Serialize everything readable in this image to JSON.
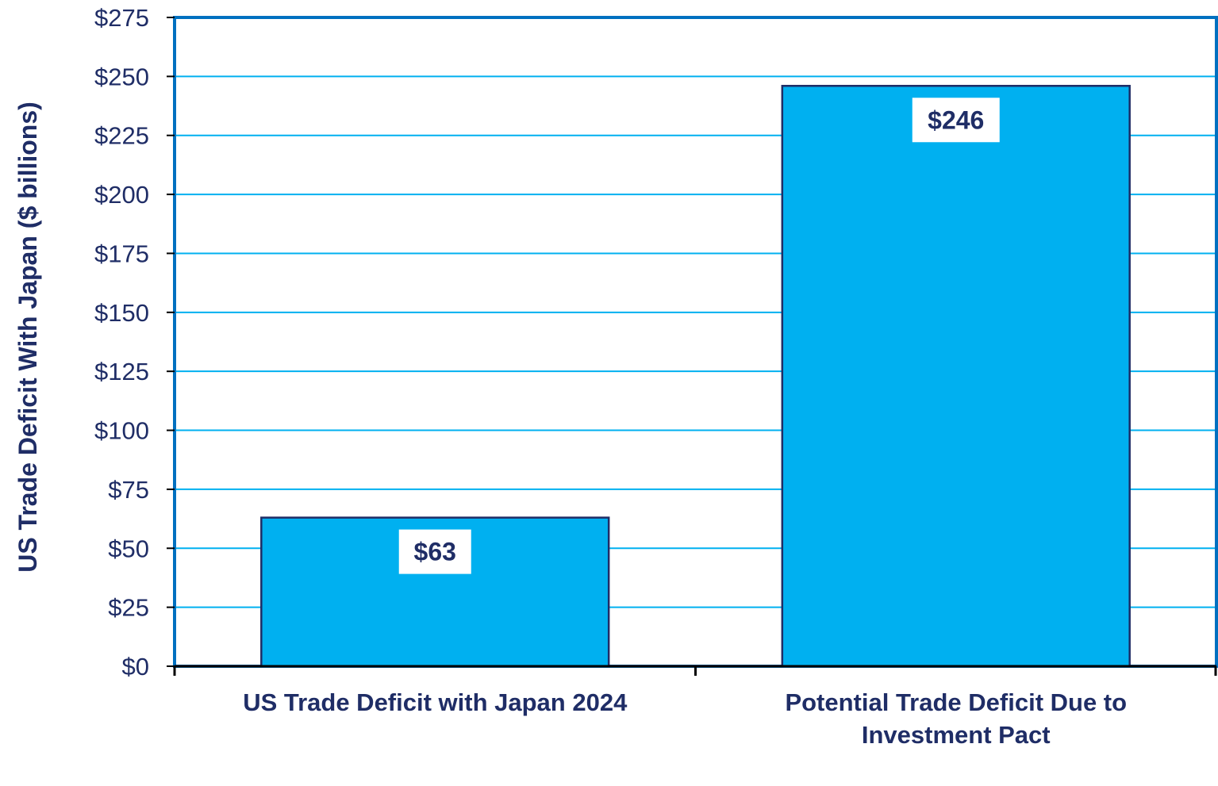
{
  "chart_data": {
    "type": "bar",
    "title": "",
    "xlabel": "",
    "ylabel": "US Trade Deficit With Japan ($ billions)",
    "categories": [
      [
        "US Trade Deficit with Japan 2024"
      ],
      [
        "Potential Trade Deficit Due to",
        "Investment Pact"
      ]
    ],
    "values": [
      63,
      246
    ],
    "data_labels": [
      "$63",
      "$246"
    ],
    "ylim": [
      0,
      275
    ],
    "ytick_step": 25,
    "ytick_labels": [
      "$0",
      "$25",
      "$50",
      "$75",
      "$100",
      "$125",
      "$150",
      "$175",
      "$200",
      "$225",
      "$250",
      "$275"
    ],
    "grid": true,
    "legend": "none",
    "colors": {
      "bar_fill": "#00b0f0",
      "bar_edge": "#1f2d66",
      "gridline": "#00b0f0",
      "plot_frame": "#0070c0",
      "axis": "#000000",
      "text": "#1f2d66"
    }
  }
}
